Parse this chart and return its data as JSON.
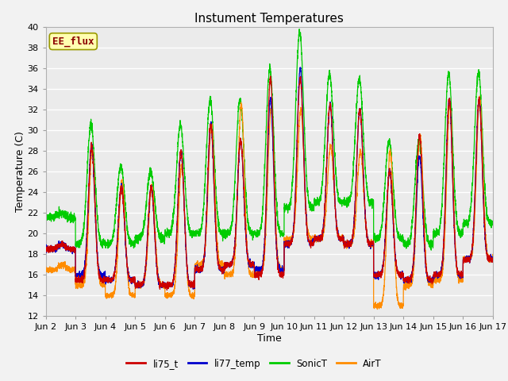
{
  "title": "Instument Temperatures",
  "xlabel": "Time",
  "ylabel": "Temperature (C)",
  "ylim": [
    12,
    40
  ],
  "yticks": [
    12,
    14,
    16,
    18,
    20,
    22,
    24,
    26,
    28,
    30,
    32,
    34,
    36,
    38,
    40
  ],
  "xtick_labels": [
    "Jun 2",
    "Jun 3",
    "Jun 4",
    "Jun 5",
    "Jun 6",
    "Jun 7",
    "Jun 8",
    "Jun 9",
    "Jun 10",
    "Jun 11",
    "Jun 12",
    "Jun 13",
    "Jun 14",
    "Jun 15",
    "Jun 16",
    "Jun 17"
  ],
  "annotation_text": "EE_flux",
  "annotation_color": "#8B0000",
  "annotation_bg": "#FFFFB0",
  "annotation_border": "#999900",
  "legend_items": [
    "li75_t",
    "li77_temp",
    "SonicT",
    "AirT"
  ],
  "line_colors": {
    "li75_t": "#CC0000",
    "li77_temp": "#0000CC",
    "SonicT": "#00CC00",
    "AirT": "#FF8C00"
  },
  "bg_color": "#EBEBEB",
  "fig_color": "#F2F2F2",
  "title_fontsize": 11,
  "axis_label_fontsize": 9,
  "tick_fontsize": 8,
  "days": 15,
  "ppd": 288,
  "day_peaks_li75": [
    19.0,
    28.5,
    24.5,
    24.5,
    28.0,
    30.5,
    29.0,
    35.0,
    35.0,
    32.5,
    32.0,
    26.0,
    29.5,
    33.0,
    33.0
  ],
  "day_mins_li75": [
    18.5,
    15.5,
    15.5,
    15.0,
    15.0,
    16.5,
    17.0,
    16.0,
    19.0,
    19.5,
    19.0,
    16.0,
    15.5,
    16.0,
    17.5
  ],
  "day_peaks_li77": [
    19.0,
    28.5,
    24.5,
    24.5,
    28.0,
    30.5,
    29.0,
    33.0,
    36.0,
    32.5,
    32.0,
    26.0,
    27.5,
    33.0,
    33.0
  ],
  "day_mins_li77": [
    18.5,
    16.0,
    15.5,
    15.0,
    15.0,
    16.5,
    17.0,
    16.5,
    19.0,
    19.5,
    19.0,
    16.0,
    15.5,
    16.0,
    17.5
  ],
  "day_peaks_sonic": [
    22.0,
    30.5,
    26.5,
    26.0,
    30.5,
    33.0,
    33.0,
    36.0,
    39.5,
    35.5,
    35.0,
    29.0,
    29.0,
    35.5,
    35.5
  ],
  "day_mins_sonic": [
    21.5,
    19.0,
    19.0,
    19.5,
    20.0,
    20.0,
    20.0,
    20.0,
    22.5,
    23.0,
    23.0,
    19.5,
    19.0,
    20.0,
    21.0
  ],
  "day_peaks_airt": [
    17.0,
    28.0,
    25.0,
    24.5,
    26.5,
    30.5,
    32.5,
    32.0,
    32.0,
    28.5,
    28.0,
    28.0,
    29.5,
    32.5,
    33.0
  ],
  "day_mins_airt": [
    16.5,
    15.0,
    14.0,
    15.0,
    14.0,
    17.0,
    16.0,
    16.5,
    19.5,
    19.5,
    19.0,
    13.0,
    15.0,
    15.5,
    17.5
  ]
}
